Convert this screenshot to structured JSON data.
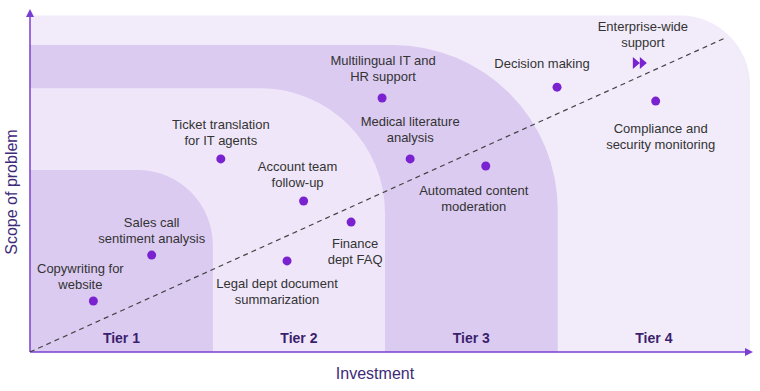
{
  "chart_data": {
    "type": "scatter",
    "x_label": "Investment",
    "y_label": "Scope of problem",
    "xlim": [
      0,
      100
    ],
    "ylim": [
      0,
      100
    ],
    "tick_labels": false,
    "grid": false,
    "tiers": [
      {
        "label": "Tier 1",
        "x_end": 25.4,
        "y_top": 53.5
      },
      {
        "label": "Tier 2",
        "x_end": 49.3,
        "y_top": 77.6
      },
      {
        "label": "Tier 3",
        "x_end": 73.3,
        "y_top": 90.3
      },
      {
        "label": "Tier 4",
        "x_end": 100,
        "y_top": 99
      }
    ],
    "series": [
      {
        "type": "scatter",
        "color": "#7a22d0",
        "marker": "circle",
        "x": [
          8.8,
          16.9,
          26.5,
          38,
          35.7,
          44.6,
          48.9,
          52.8,
          63.3,
          73.2,
          86.9
        ],
        "values": [
          15,
          28.5,
          56.8,
          44.4,
          26.8,
          38.2,
          74.7,
          56.8,
          54.7,
          77.9,
          73.8
        ],
        "labels": [
          "Copywriting for\nwebsite",
          "Sales call\nsentiment analysis",
          "Ticket translation\nfor IT agents",
          "Account team\nfollow-up",
          "Legal dept document\nsummarization",
          "Finance\ndept FAQ",
          "Multilingual IT and\nHR support",
          "Medical literature\nanalysis",
          "Automated content\nmoderation",
          "Decision making",
          "Compliance and\nsecurity monitoring"
        ]
      },
      {
        "type": "scatter",
        "color": "#7a22d0",
        "marker": "fast-forward",
        "x": [
          84.7
        ],
        "values": [
          85
        ],
        "labels": [
          "Enterprise-wide\nsupport"
        ]
      },
      {
        "type": "line",
        "color": "#444444",
        "line_style": "dashed",
        "x": [
          0,
          96.8
        ],
        "values": [
          0,
          92.6
        ]
      }
    ]
  }
}
